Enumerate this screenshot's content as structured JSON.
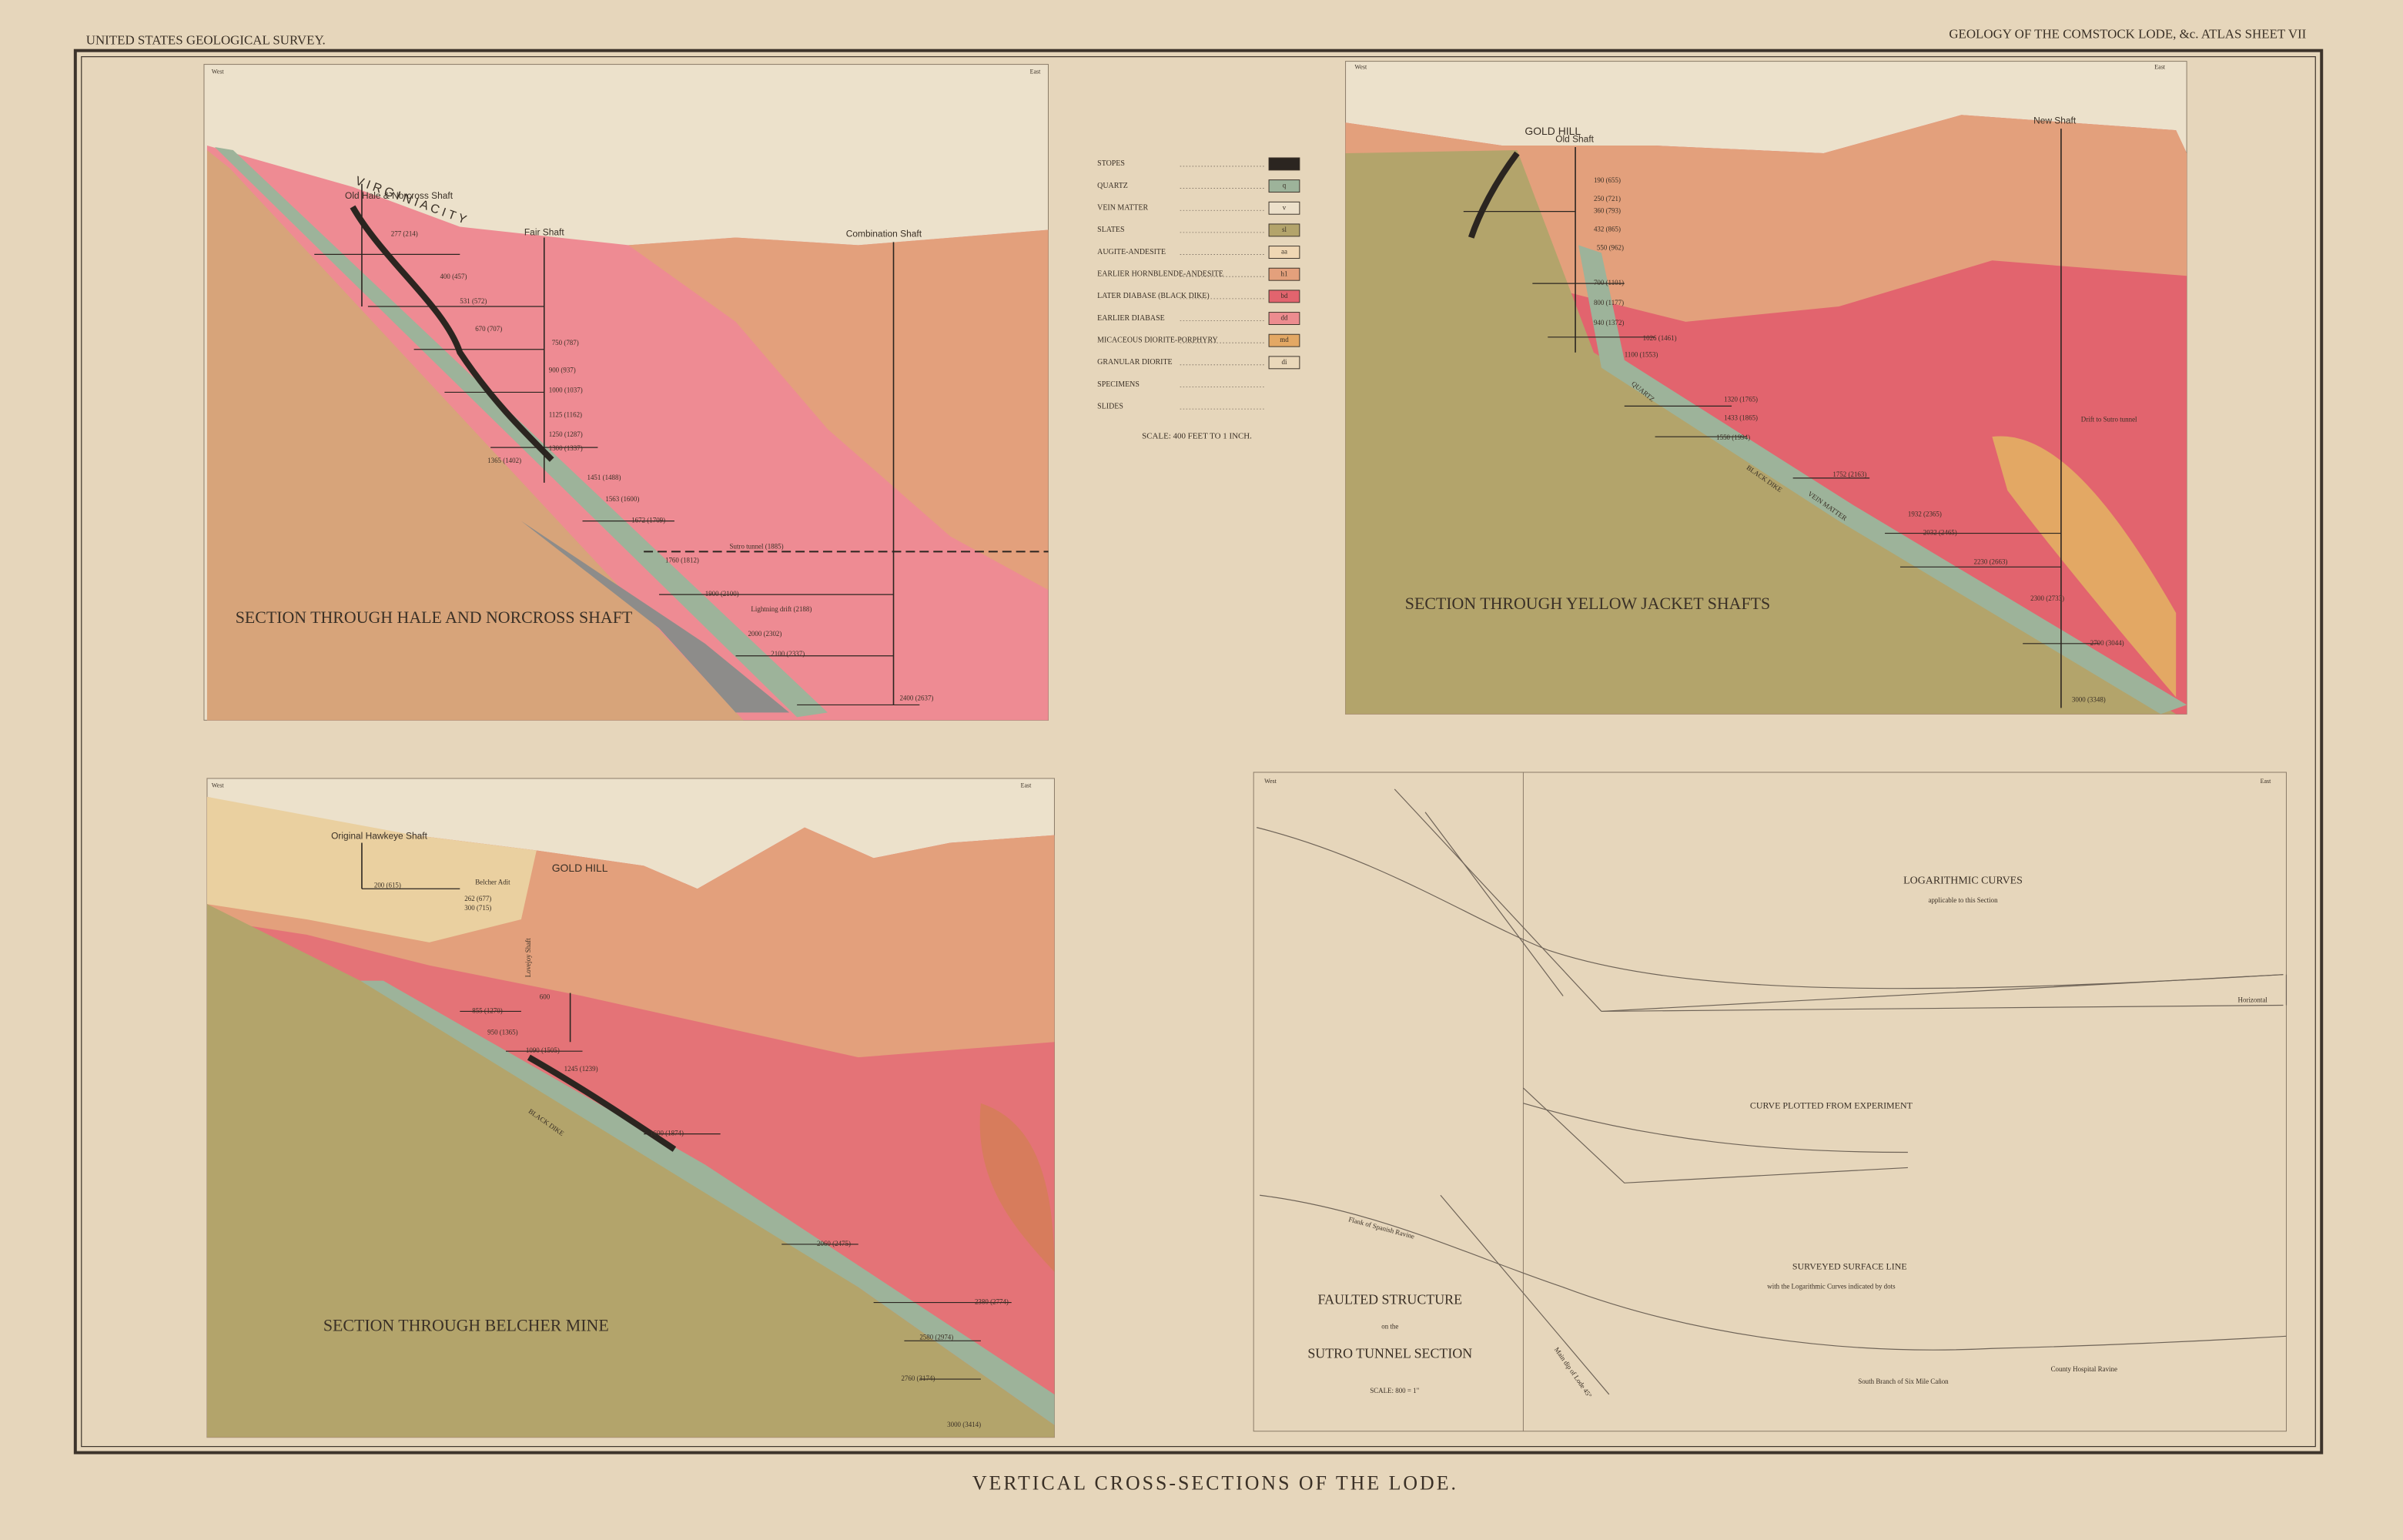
{
  "header": {
    "left": "UNITED STATES GEOLOGICAL SURVEY.",
    "right": "GEOLOGY OF THE COMSTOCK LODE, &c. ATLAS SHEET VII"
  },
  "footer_title": "VERTICAL CROSS-SECTIONS OF THE LODE.",
  "legend": {
    "items": [
      {
        "label": "STOPES",
        "color": "#2b2520"
      },
      {
        "label": "QUARTZ",
        "symbol": "q",
        "color": "#9db39a"
      },
      {
        "label": "VEIN MATTER",
        "symbol": "v",
        "color": "#ece0ca"
      },
      {
        "label": "SLATES",
        "symbol": "sl",
        "color": "#b3a46b"
      },
      {
        "label": "AUGITE-ANDESITE",
        "symbol": "aa",
        "color": "#f0d7b4"
      },
      {
        "label": "EARLIER HORNBLENDE-ANDESITE",
        "symbol": "h1",
        "color": "#e3a07c"
      },
      {
        "label": "LATER DIABASE (BLACK DIKE)",
        "symbol": "bd",
        "color": "#e2646e"
      },
      {
        "label": "EARLIER DIABASE",
        "symbol": "dd",
        "color": "#ec8c8f"
      },
      {
        "label": "MICACEOUS DIORITE-PORPHYRY",
        "symbol": "md",
        "color": "#e3a864"
      },
      {
        "label": "GRANULAR DIORITE",
        "symbol": "di",
        "color": "#ead8ba"
      },
      {
        "label": "SPECIMENS"
      },
      {
        "label": "SLIDES"
      }
    ],
    "scale": "SCALE: 400 FEET TO 1 INCH."
  },
  "sections": [
    {
      "title": "SECTION THROUGH HALE AND NORCROSS SHAFT",
      "labels": [
        "West",
        "East",
        "V I R G I N I A   C I T Y",
        "Old Hale & Norcross Shaft",
        "Fair Shaft",
        "Combination Shaft",
        "Sutro tunnel (1885)",
        "Lightning drift (2188)",
        "277 (214)",
        "400 (457)",
        "531 (572)",
        "670 (707)",
        "750 (787)",
        "900 (937)",
        "1000 (1037)",
        "1125 (1162)",
        "1250 (1287)",
        "1300 (1337)",
        "1365 (1402)",
        "1451 (1488)",
        "1563 (1600)",
        "1672 (1709)",
        "1760 (1812)",
        "1900 (2100)",
        "2000 (2302)",
        "2100 (2337)",
        "2400 (2637)"
      ]
    },
    {
      "title": "SECTION THROUGH YELLOW JACKET SHAFTS",
      "labels": [
        "West",
        "East",
        "GOLD HILL",
        "Old Shaft",
        "New Shaft",
        "Drift to Sutro tunnel",
        "QUARTZ",
        "BLACK DIKE",
        "VEIN MATTER",
        "190 (655)",
        "250 (721)",
        "360 (793)",
        "432 (865)",
        "550 (962)",
        "700 (1101)",
        "800 (1177)",
        "940 (1372)",
        "1026 (1461)",
        "1100 (1553)",
        "1320 (1765)",
        "1433 (1865)",
        "1550 (1994)",
        "1752 (2163)",
        "1932 (2365)",
        "2032 (2465)",
        "2230 (2663)",
        "2300 (2733)",
        "2700 (3044)",
        "3000 (3348)"
      ]
    },
    {
      "title": "SECTION THROUGH BELCHER MINE",
      "labels": [
        "West",
        "East",
        "Original Hawkeye Shaft",
        "GOLD HILL",
        "Belcher Adit",
        "Lovejoy Shaft",
        "BLACK DIKE",
        "200 (615)",
        "262 (677)",
        "300 (715)",
        "600",
        "855 (1270)",
        "950 (1365)",
        "1090 (1505)",
        "1245 (1239)",
        "1600 (1874)",
        "2060 (2475)",
        "2380 (2774)",
        "2580 (2974)",
        "2760 (3174)",
        "3000 (3414)"
      ]
    },
    {
      "title": "FAULTED STRUCTURE",
      "labels": [
        "West",
        "East",
        "LOGARITHMIC CURVES",
        "applicable to this Section",
        "CURVE PLOTTED FROM EXPERIMENT",
        "SURVEYED SURFACE LINE",
        "with the Logarithmic Curves indicated by dots",
        "on the",
        "SUTRO TUNNEL SECTION",
        "SCALE: 800 = 1\"",
        "Flank of Spanish Ravine",
        "Main dip of Lode 45°",
        "South Branch of Six Mile Cañon",
        "County Hospital Ravine",
        "Horizontal"
      ]
    }
  ]
}
